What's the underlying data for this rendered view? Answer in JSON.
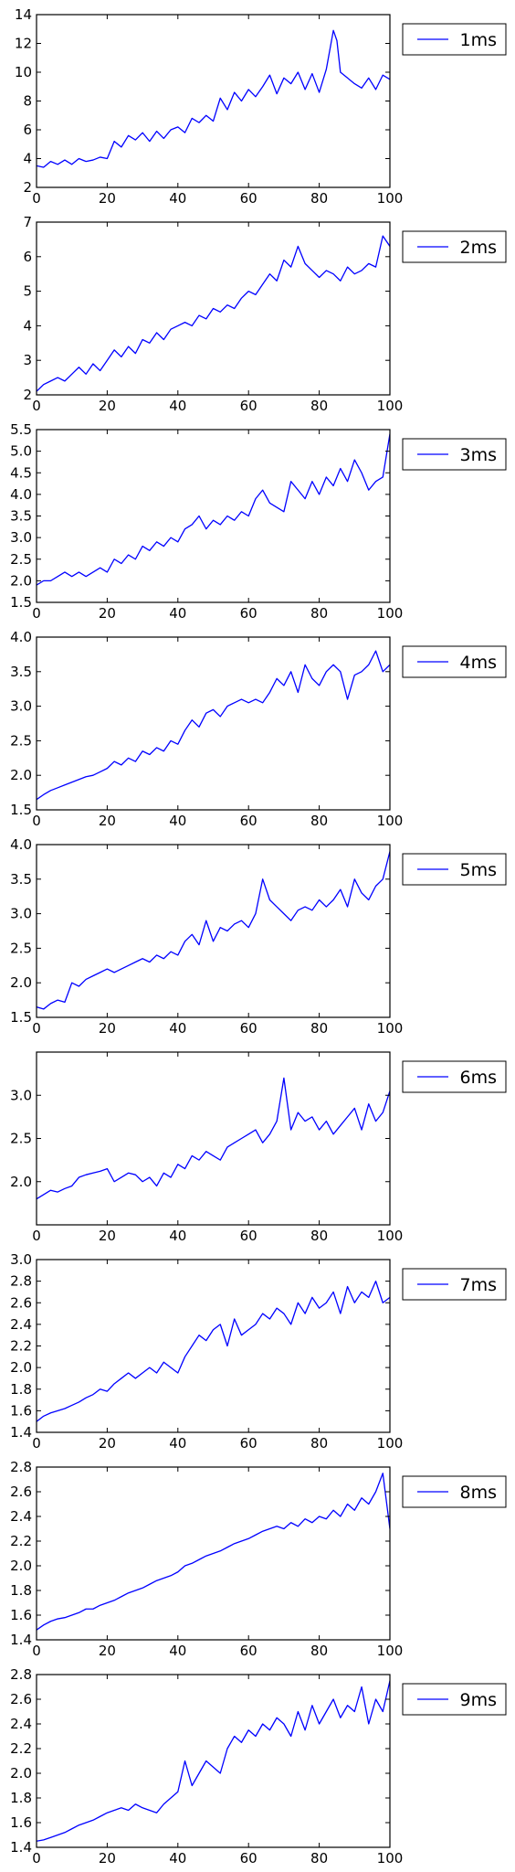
{
  "figure": {
    "line_color": "#0000ff",
    "axis_color": "#000000",
    "background": "#ffffff",
    "legend_placement": "outside upper right",
    "grid": false
  },
  "chart_data": [
    {
      "type": "line",
      "xlim": [
        0,
        100
      ],
      "ylim": [
        2,
        14
      ],
      "xticks": [
        "0",
        "20",
        "40",
        "60",
        "80",
        "100"
      ],
      "yticks": [
        "2",
        "4",
        "6",
        "8",
        "10",
        "12",
        "14"
      ],
      "series": [
        {
          "name": "1ms",
          "x": [
            0,
            2,
            4,
            6,
            8,
            10,
            12,
            14,
            16,
            18,
            20,
            22,
            24,
            26,
            28,
            30,
            32,
            34,
            36,
            38,
            40,
            42,
            44,
            46,
            48,
            50,
            52,
            54,
            56,
            58,
            60,
            62,
            64,
            66,
            68,
            70,
            72,
            74,
            76,
            78,
            80,
            82,
            84,
            85,
            86,
            88,
            90,
            92,
            94,
            96,
            98,
            100
          ],
          "y": [
            3.5,
            3.4,
            3.8,
            3.6,
            3.9,
            3.6,
            4.0,
            3.8,
            3.9,
            4.1,
            4.0,
            5.2,
            4.8,
            5.6,
            5.3,
            5.8,
            5.2,
            5.9,
            5.4,
            6.0,
            6.2,
            5.8,
            6.8,
            6.5,
            7.0,
            6.6,
            8.2,
            7.4,
            8.6,
            8.0,
            8.8,
            8.3,
            9.0,
            9.8,
            8.5,
            9.6,
            9.2,
            10.0,
            8.8,
            9.9,
            8.6,
            10.2,
            12.9,
            12.2,
            10.0,
            9.6,
            9.2,
            8.9,
            9.6,
            8.8,
            9.8,
            9.5
          ]
        }
      ]
    },
    {
      "type": "line",
      "xlim": [
        0,
        100
      ],
      "ylim": [
        2,
        7
      ],
      "xticks": [
        "0",
        "20",
        "40",
        "60",
        "80",
        "100"
      ],
      "yticks": [
        "2",
        "3",
        "4",
        "5",
        "6",
        "7"
      ],
      "series": [
        {
          "name": "2ms",
          "x": [
            0,
            2,
            4,
            6,
            8,
            10,
            12,
            14,
            16,
            18,
            20,
            22,
            24,
            26,
            28,
            30,
            32,
            34,
            36,
            38,
            40,
            42,
            44,
            46,
            48,
            50,
            52,
            54,
            56,
            58,
            60,
            62,
            64,
            66,
            68,
            70,
            72,
            74,
            76,
            78,
            80,
            82,
            84,
            86,
            88,
            90,
            92,
            94,
            96,
            98,
            100
          ],
          "y": [
            2.1,
            2.3,
            2.4,
            2.5,
            2.4,
            2.6,
            2.8,
            2.6,
            2.9,
            2.7,
            3.0,
            3.3,
            3.1,
            3.4,
            3.2,
            3.6,
            3.5,
            3.8,
            3.6,
            3.9,
            4.0,
            4.1,
            4.0,
            4.3,
            4.2,
            4.5,
            4.4,
            4.6,
            4.5,
            4.8,
            5.0,
            4.9,
            5.2,
            5.5,
            5.3,
            5.9,
            5.7,
            6.3,
            5.8,
            5.6,
            5.4,
            5.6,
            5.5,
            5.3,
            5.7,
            5.5,
            5.6,
            5.8,
            5.7,
            6.6,
            6.3
          ]
        }
      ]
    },
    {
      "type": "line",
      "xlim": [
        0,
        100
      ],
      "ylim": [
        1.5,
        5.5
      ],
      "xticks": [
        "0",
        "20",
        "40",
        "60",
        "80",
        "100"
      ],
      "yticks": [
        "1.5",
        "2.0",
        "2.5",
        "3.0",
        "3.5",
        "4.0",
        "4.5",
        "5.0",
        "5.5"
      ],
      "series": [
        {
          "name": "3ms",
          "x": [
            0,
            2,
            4,
            6,
            8,
            10,
            12,
            14,
            16,
            18,
            20,
            22,
            24,
            26,
            28,
            30,
            32,
            34,
            36,
            38,
            40,
            42,
            44,
            46,
            48,
            50,
            52,
            54,
            56,
            58,
            60,
            62,
            64,
            66,
            68,
            70,
            72,
            74,
            76,
            78,
            80,
            82,
            84,
            86,
            88,
            90,
            92,
            94,
            96,
            98,
            100
          ],
          "y": [
            1.9,
            2.0,
            2.0,
            2.1,
            2.2,
            2.1,
            2.2,
            2.1,
            2.2,
            2.3,
            2.2,
            2.5,
            2.4,
            2.6,
            2.5,
            2.8,
            2.7,
            2.9,
            2.8,
            3.0,
            2.9,
            3.2,
            3.3,
            3.5,
            3.2,
            3.4,
            3.3,
            3.5,
            3.4,
            3.6,
            3.5,
            3.9,
            4.1,
            3.8,
            3.7,
            3.6,
            4.3,
            4.1,
            3.9,
            4.3,
            4.0,
            4.4,
            4.2,
            4.6,
            4.3,
            4.8,
            4.5,
            4.1,
            4.3,
            4.4,
            5.4
          ]
        }
      ]
    },
    {
      "type": "line",
      "xlim": [
        0,
        100
      ],
      "ylim": [
        1.5,
        4.0
      ],
      "xticks": [
        "0",
        "20",
        "40",
        "60",
        "80",
        "100"
      ],
      "yticks": [
        "1.5",
        "2.0",
        "2.5",
        "3.0",
        "3.5",
        "4.0"
      ],
      "series": [
        {
          "name": "4ms",
          "x": [
            0,
            2,
            4,
            6,
            8,
            10,
            12,
            14,
            16,
            18,
            20,
            22,
            24,
            26,
            28,
            30,
            32,
            34,
            36,
            38,
            40,
            42,
            44,
            46,
            48,
            50,
            52,
            54,
            56,
            58,
            60,
            62,
            64,
            66,
            68,
            70,
            72,
            74,
            76,
            78,
            80,
            82,
            84,
            86,
            88,
            90,
            92,
            94,
            96,
            98,
            100
          ],
          "y": [
            1.65,
            1.72,
            1.78,
            1.82,
            1.86,
            1.9,
            1.94,
            1.98,
            2.0,
            2.05,
            2.1,
            2.2,
            2.15,
            2.25,
            2.2,
            2.35,
            2.3,
            2.4,
            2.35,
            2.5,
            2.45,
            2.65,
            2.8,
            2.7,
            2.9,
            2.95,
            2.85,
            3.0,
            3.05,
            3.1,
            3.05,
            3.1,
            3.05,
            3.2,
            3.4,
            3.3,
            3.5,
            3.2,
            3.6,
            3.4,
            3.3,
            3.5,
            3.6,
            3.5,
            3.1,
            3.45,
            3.5,
            3.6,
            3.8,
            3.5,
            3.6
          ]
        }
      ]
    },
    {
      "type": "line",
      "xlim": [
        0,
        100
      ],
      "ylim": [
        1.5,
        4.0
      ],
      "xticks": [
        "0",
        "20",
        "40",
        "60",
        "80",
        "100"
      ],
      "yticks": [
        "1.5",
        "2.0",
        "2.5",
        "3.0",
        "3.5",
        "4.0"
      ],
      "series": [
        {
          "name": "5ms",
          "x": [
            0,
            2,
            4,
            6,
            8,
            10,
            12,
            14,
            16,
            18,
            20,
            22,
            24,
            26,
            28,
            30,
            32,
            34,
            36,
            38,
            40,
            42,
            44,
            46,
            48,
            50,
            52,
            54,
            56,
            58,
            60,
            62,
            64,
            66,
            68,
            70,
            72,
            74,
            76,
            78,
            80,
            82,
            84,
            86,
            88,
            90,
            92,
            94,
            96,
            98,
            100
          ],
          "y": [
            1.65,
            1.62,
            1.7,
            1.75,
            1.72,
            2.0,
            1.95,
            2.05,
            2.1,
            2.15,
            2.2,
            2.15,
            2.2,
            2.25,
            2.3,
            2.35,
            2.3,
            2.4,
            2.35,
            2.45,
            2.4,
            2.6,
            2.7,
            2.55,
            2.9,
            2.6,
            2.8,
            2.75,
            2.85,
            2.9,
            2.8,
            3.0,
            3.5,
            3.2,
            3.1,
            3.0,
            2.9,
            3.05,
            3.1,
            3.05,
            3.2,
            3.1,
            3.2,
            3.35,
            3.1,
            3.5,
            3.3,
            3.2,
            3.4,
            3.5,
            3.9
          ]
        }
      ]
    },
    {
      "type": "line",
      "xlim": [
        0,
        100
      ],
      "ylim": [
        1.5,
        3.5
      ],
      "xticks": [
        "0",
        "20",
        "40",
        "60",
        "80",
        "100"
      ],
      "yticks": [
        "2.0",
        "2.5",
        "3.0"
      ],
      "series": [
        {
          "name": "6ms",
          "x": [
            0,
            2,
            4,
            6,
            8,
            10,
            12,
            14,
            16,
            18,
            20,
            22,
            24,
            26,
            28,
            30,
            32,
            34,
            36,
            38,
            40,
            42,
            44,
            46,
            48,
            50,
            52,
            54,
            56,
            58,
            60,
            62,
            64,
            66,
            68,
            70,
            72,
            74,
            76,
            78,
            80,
            82,
            84,
            86,
            88,
            90,
            92,
            94,
            96,
            98,
            100
          ],
          "y": [
            1.8,
            1.85,
            1.9,
            1.88,
            1.92,
            1.95,
            2.05,
            2.08,
            2.1,
            2.12,
            2.15,
            2.0,
            2.05,
            2.1,
            2.08,
            2.0,
            2.05,
            1.95,
            2.1,
            2.05,
            2.2,
            2.15,
            2.3,
            2.25,
            2.35,
            2.3,
            2.25,
            2.4,
            2.45,
            2.5,
            2.55,
            2.6,
            2.45,
            2.55,
            2.7,
            3.2,
            2.6,
            2.8,
            2.7,
            2.75,
            2.6,
            2.7,
            2.55,
            2.65,
            2.75,
            2.85,
            2.6,
            2.9,
            2.7,
            2.8,
            3.05
          ]
        }
      ]
    },
    {
      "type": "line",
      "xlim": [
        0,
        100
      ],
      "ylim": [
        1.4,
        3.0
      ],
      "xticks": [
        "0",
        "20",
        "40",
        "60",
        "80",
        "100"
      ],
      "yticks": [
        "1.4",
        "1.6",
        "1.8",
        "2.0",
        "2.2",
        "2.4",
        "2.6",
        "2.8",
        "3.0"
      ],
      "series": [
        {
          "name": "7ms",
          "x": [
            0,
            2,
            4,
            6,
            8,
            10,
            12,
            14,
            16,
            18,
            20,
            22,
            24,
            26,
            28,
            30,
            32,
            34,
            36,
            38,
            40,
            42,
            44,
            46,
            48,
            50,
            52,
            54,
            56,
            58,
            60,
            62,
            64,
            66,
            68,
            70,
            72,
            74,
            76,
            78,
            80,
            82,
            84,
            86,
            88,
            90,
            92,
            94,
            96,
            98,
            100
          ],
          "y": [
            1.5,
            1.55,
            1.58,
            1.6,
            1.62,
            1.65,
            1.68,
            1.72,
            1.75,
            1.8,
            1.78,
            1.85,
            1.9,
            1.95,
            1.9,
            1.95,
            2.0,
            1.95,
            2.05,
            2.0,
            1.95,
            2.1,
            2.2,
            2.3,
            2.25,
            2.35,
            2.4,
            2.2,
            2.45,
            2.3,
            2.35,
            2.4,
            2.5,
            2.45,
            2.55,
            2.5,
            2.4,
            2.6,
            2.5,
            2.65,
            2.55,
            2.6,
            2.7,
            2.5,
            2.75,
            2.6,
            2.7,
            2.65,
            2.8,
            2.6,
            2.65
          ]
        }
      ]
    },
    {
      "type": "line",
      "xlim": [
        0,
        100
      ],
      "ylim": [
        1.4,
        2.8
      ],
      "xticks": [
        "0",
        "20",
        "40",
        "60",
        "80",
        "100"
      ],
      "yticks": [
        "1.4",
        "1.6",
        "1.8",
        "2.0",
        "2.2",
        "2.4",
        "2.6",
        "2.8"
      ],
      "series": [
        {
          "name": "8ms",
          "x": [
            0,
            2,
            4,
            6,
            8,
            10,
            12,
            14,
            16,
            18,
            20,
            22,
            24,
            26,
            28,
            30,
            32,
            34,
            36,
            38,
            40,
            42,
            44,
            46,
            48,
            50,
            52,
            54,
            56,
            58,
            60,
            62,
            64,
            66,
            68,
            70,
            72,
            74,
            76,
            78,
            80,
            82,
            84,
            86,
            88,
            90,
            92,
            94,
            96,
            98,
            100
          ],
          "y": [
            1.48,
            1.52,
            1.55,
            1.57,
            1.58,
            1.6,
            1.62,
            1.65,
            1.65,
            1.68,
            1.7,
            1.72,
            1.75,
            1.78,
            1.8,
            1.82,
            1.85,
            1.88,
            1.9,
            1.92,
            1.95,
            2.0,
            2.02,
            2.05,
            2.08,
            2.1,
            2.12,
            2.15,
            2.18,
            2.2,
            2.22,
            2.25,
            2.28,
            2.3,
            2.32,
            2.3,
            2.35,
            2.32,
            2.38,
            2.35,
            2.4,
            2.38,
            2.45,
            2.4,
            2.5,
            2.45,
            2.55,
            2.5,
            2.6,
            2.75,
            2.3
          ]
        }
      ]
    },
    {
      "type": "line",
      "xlim": [
        0,
        100
      ],
      "ylim": [
        1.4,
        2.8
      ],
      "xticks": [
        "0",
        "20",
        "40",
        "60",
        "80",
        "100"
      ],
      "yticks": [
        "1.4",
        "1.6",
        "1.8",
        "2.0",
        "2.2",
        "2.4",
        "2.6",
        "2.8"
      ],
      "series": [
        {
          "name": "9ms",
          "x": [
            0,
            2,
            4,
            6,
            8,
            10,
            12,
            14,
            16,
            18,
            20,
            22,
            24,
            26,
            28,
            30,
            32,
            34,
            36,
            38,
            40,
            42,
            44,
            46,
            48,
            50,
            52,
            54,
            56,
            58,
            60,
            62,
            64,
            66,
            68,
            70,
            72,
            74,
            76,
            78,
            80,
            82,
            84,
            86,
            88,
            90,
            92,
            94,
            96,
            98,
            100
          ],
          "y": [
            1.45,
            1.46,
            1.48,
            1.5,
            1.52,
            1.55,
            1.58,
            1.6,
            1.62,
            1.65,
            1.68,
            1.7,
            1.72,
            1.7,
            1.75,
            1.72,
            1.7,
            1.68,
            1.75,
            1.8,
            1.85,
            2.1,
            1.9,
            2.0,
            2.1,
            2.05,
            2.0,
            2.2,
            2.3,
            2.25,
            2.35,
            2.3,
            2.4,
            2.35,
            2.45,
            2.4,
            2.3,
            2.5,
            2.35,
            2.55,
            2.4,
            2.5,
            2.6,
            2.45,
            2.55,
            2.5,
            2.7,
            2.4,
            2.6,
            2.5,
            2.75
          ]
        }
      ]
    }
  ]
}
